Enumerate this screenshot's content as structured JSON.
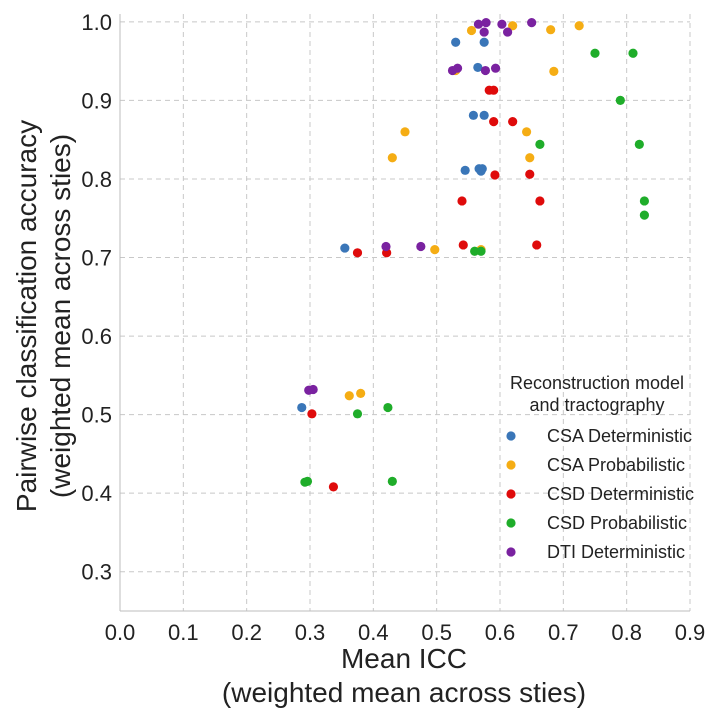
{
  "chart_data": {
    "type": "scatter",
    "title": "",
    "xlabel_lines": [
      "Mean ICC",
      "(weighted mean across sties)"
    ],
    "ylabel_lines": [
      "Pairwise classification accuracy",
      "(weighted mean across sties)"
    ],
    "xlim": [
      0.0,
      0.9
    ],
    "ylim": [
      0.25,
      1.01
    ],
    "xticks": [
      "0.0",
      "0.1",
      "0.2",
      "0.3",
      "0.4",
      "0.5",
      "0.6",
      "0.7",
      "0.8",
      "0.9"
    ],
    "yticks": [
      "0.3",
      "0.4",
      "0.5",
      "0.6",
      "0.7",
      "0.8",
      "0.9",
      "1.0"
    ],
    "grid": true,
    "legend": {
      "title_lines": [
        "Reconstruction model",
        "and tractography"
      ],
      "placement": "lower-right"
    },
    "series": [
      {
        "name": "CSA Deterministic",
        "color": "#3a76b8",
        "points": [
          [
            0.53,
            0.974
          ],
          [
            0.575,
            0.974
          ],
          [
            0.565,
            0.942
          ],
          [
            0.558,
            0.881
          ],
          [
            0.575,
            0.881
          ],
          [
            0.545,
            0.811
          ],
          [
            0.567,
            0.813
          ],
          [
            0.572,
            0.813
          ],
          [
            0.57,
            0.81
          ],
          [
            0.355,
            0.712
          ],
          [
            0.287,
            0.509
          ]
        ]
      },
      {
        "name": "CSA Probabilistic",
        "color": "#f5ad14",
        "points": [
          [
            0.555,
            0.989
          ],
          [
            0.62,
            0.995
          ],
          [
            0.68,
            0.99
          ],
          [
            0.725,
            0.995
          ],
          [
            0.53,
            0.938
          ],
          [
            0.685,
            0.937
          ],
          [
            0.45,
            0.86
          ],
          [
            0.642,
            0.86
          ],
          [
            0.43,
            0.827
          ],
          [
            0.647,
            0.827
          ],
          [
            0.497,
            0.71
          ],
          [
            0.57,
            0.71
          ],
          [
            0.362,
            0.524
          ],
          [
            0.38,
            0.527
          ]
        ]
      },
      {
        "name": "CSD Deterministic",
        "color": "#df0b0b",
        "points": [
          [
            0.583,
            0.913
          ],
          [
            0.59,
            0.913
          ],
          [
            0.62,
            0.873
          ],
          [
            0.59,
            0.873
          ],
          [
            0.592,
            0.805
          ],
          [
            0.647,
            0.806
          ],
          [
            0.54,
            0.772
          ],
          [
            0.663,
            0.772
          ],
          [
            0.542,
            0.716
          ],
          [
            0.658,
            0.716
          ],
          [
            0.375,
            0.706
          ],
          [
            0.421,
            0.706
          ],
          [
            0.303,
            0.501
          ],
          [
            0.337,
            0.408
          ]
        ]
      },
      {
        "name": "CSD Probabilistic",
        "color": "#1fad2a",
        "points": [
          [
            0.75,
            0.96
          ],
          [
            0.81,
            0.96
          ],
          [
            0.79,
            0.9
          ],
          [
            0.663,
            0.844
          ],
          [
            0.82,
            0.844
          ],
          [
            0.828,
            0.772
          ],
          [
            0.828,
            0.754
          ],
          [
            0.56,
            0.708
          ],
          [
            0.57,
            0.708
          ],
          [
            0.375,
            0.501
          ],
          [
            0.423,
            0.509
          ],
          [
            0.292,
            0.414
          ],
          [
            0.296,
            0.415
          ],
          [
            0.43,
            0.415
          ]
        ]
      },
      {
        "name": "DTI Deterministic",
        "color": "#7a22a0",
        "points": [
          [
            0.566,
            0.997
          ],
          [
            0.578,
            0.999
          ],
          [
            0.603,
            0.997
          ],
          [
            0.65,
            0.999
          ],
          [
            0.575,
            0.987
          ],
          [
            0.612,
            0.987
          ],
          [
            0.525,
            0.938
          ],
          [
            0.533,
            0.941
          ],
          [
            0.577,
            0.938
          ],
          [
            0.593,
            0.941
          ],
          [
            0.42,
            0.714
          ],
          [
            0.475,
            0.714
          ],
          [
            0.298,
            0.531
          ],
          [
            0.305,
            0.532
          ]
        ]
      }
    ]
  }
}
